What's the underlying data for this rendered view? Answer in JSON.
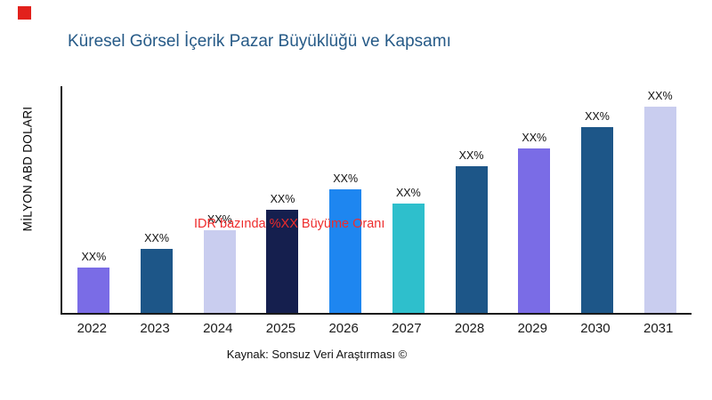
{
  "accent_square_color": "#e2211c",
  "title": "Küresel Görsel İçerik Pazar Büyüklüğü ve Kapsamı",
  "title_color": "#265a87",
  "y_axis_label": "MİLYON ABD DOLARI",
  "annotation": {
    "text": "IDR bazında %XX Büyüme Oranı",
    "color": "#ee2c2c"
  },
  "caption": "Kaynak: Sonsuz Veri Araştırması ©",
  "chart_data": {
    "type": "bar",
    "title": "Küresel Görsel İçerik Pazar Büyüklüğü ve Kapsamı",
    "categories": [
      "2022",
      "2023",
      "2024",
      "2025",
      "2026",
      "2027",
      "2028",
      "2029",
      "2030",
      "2031"
    ],
    "values": [
      22,
      31,
      40,
      50,
      60,
      53,
      71,
      80,
      90,
      100
    ],
    "bar_labels": [
      "XX%",
      "XX%",
      "XX%",
      "XX%",
      "XX%",
      "XX%",
      "XX%",
      "XX%",
      "XX%",
      "XX%"
    ],
    "bar_colors": [
      "#7a6ce6",
      "#1d5688",
      "#c9cdef",
      "#151f4e",
      "#1e86f0",
      "#2ebfcc",
      "#1d5688",
      "#7a6ce6",
      "#1d5688",
      "#c9cdef"
    ],
    "xlabel": "",
    "ylabel": "MİLYON ABD DOLARI",
    "ylim": [
      0,
      110
    ],
    "grid": false,
    "legend": false,
    "annotations": [
      "IDR bazında %XX Büyüme Oranı"
    ],
    "source": "Kaynak: Sonsuz Veri Araştırması ©"
  }
}
